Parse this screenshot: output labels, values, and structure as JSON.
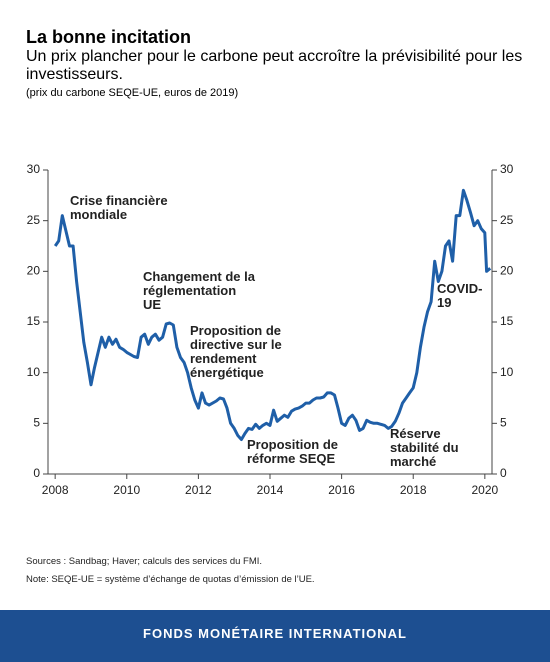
{
  "chart_data": {
    "type": "line",
    "title": "La bonne incitation",
    "subtitle": "Un prix plancher pour le carbone peut accroître la prévisibilité pour les investisseurs.",
    "unit_note": "(prix du carbone SEQE-UE, euros de 2019)",
    "x": [
      2008.0,
      2008.1,
      2008.2,
      2008.3,
      2008.4,
      2008.5,
      2008.6,
      2008.7,
      2008.8,
      2008.9,
      2009.0,
      2009.1,
      2009.2,
      2009.3,
      2009.4,
      2009.5,
      2009.6,
      2009.7,
      2009.8,
      2009.9,
      2010.0,
      2010.2,
      2010.3,
      2010.4,
      2010.5,
      2010.6,
      2010.7,
      2010.8,
      2010.9,
      2011.0,
      2011.1,
      2011.2,
      2011.3,
      2011.4,
      2011.5,
      2011.6,
      2011.7,
      2011.8,
      2011.9,
      2012.0,
      2012.1,
      2012.2,
      2012.3,
      2012.5,
      2012.6,
      2012.7,
      2012.8,
      2012.9,
      2013.0,
      2013.1,
      2013.2,
      2013.3,
      2013.4,
      2013.5,
      2013.6,
      2013.7,
      2013.8,
      2013.9,
      2014.0,
      2014.1,
      2014.2,
      2014.3,
      2014.4,
      2014.5,
      2014.6,
      2014.7,
      2014.8,
      2014.9,
      2015.0,
      2015.1,
      2015.2,
      2015.3,
      2015.4,
      2015.5,
      2015.6,
      2015.7,
      2015.8,
      2015.9,
      2016.0,
      2016.1,
      2016.2,
      2016.3,
      2016.4,
      2016.5,
      2016.6,
      2016.7,
      2016.8,
      2016.9,
      2017.0,
      2017.2,
      2017.3,
      2017.4,
      2017.5,
      2017.6,
      2017.7,
      2017.8,
      2017.9,
      2018.0,
      2018.1,
      2018.2,
      2018.3,
      2018.4,
      2018.5,
      2018.6,
      2018.7,
      2018.8,
      2018.9,
      2019.0,
      2019.1,
      2019.2,
      2019.3,
      2019.4,
      2019.5,
      2019.6,
      2019.7,
      2019.8,
      2019.9,
      2020.0,
      2020.05,
      2020.15
    ],
    "series": [
      {
        "name": "Prix du carbone SEQE-UE",
        "color": "#1f5fa8",
        "values": [
          22.5,
          23,
          25.5,
          24,
          22.5,
          22.5,
          19,
          16,
          13,
          11,
          8.8,
          10.5,
          12,
          13.5,
          12.5,
          13.5,
          12.8,
          13.3,
          12.5,
          12.3,
          12,
          11.6,
          11.5,
          13.5,
          13.8,
          12.8,
          13.5,
          13.8,
          13.2,
          13.5,
          14.8,
          14.9,
          14.7,
          12.5,
          11.5,
          11,
          10,
          8.5,
          7.3,
          6.5,
          8,
          7,
          6.8,
          7.2,
          7.5,
          7.4,
          6.5,
          5,
          4.5,
          3.8,
          3.4,
          4,
          4.5,
          4.4,
          4.9,
          4.5,
          4.8,
          5,
          4.8,
          6.3,
          5.2,
          5.5,
          5.8,
          5.6,
          6.2,
          6.4,
          6.5,
          6.7,
          7,
          7,
          7.3,
          7.5,
          7.5,
          7.6,
          8,
          8,
          7.8,
          6.5,
          5,
          4.8,
          5.5,
          5.8,
          5.3,
          4.3,
          4.5,
          5.3,
          5.1,
          5,
          5,
          4.8,
          4.5,
          4.7,
          5.2,
          6,
          7,
          7.5,
          8,
          8.5,
          10,
          12.5,
          14.5,
          16,
          17,
          21,
          19,
          20,
          22.5,
          23,
          21,
          25.5,
          25.5,
          28,
          27,
          25.8,
          24.5,
          25,
          24.2,
          23.8,
          20,
          20.3
        ]
      }
    ],
    "xlim": [
      2007.8,
      2020.2
    ],
    "xticks": [
      2008,
      2010,
      2012,
      2014,
      2016,
      2018,
      2020
    ],
    "ylim": [
      0,
      30
    ],
    "yticks": [
      0,
      5,
      10,
      15,
      20,
      25,
      30
    ],
    "y2lim": [
      0,
      30
    ],
    "y2ticks": [
      0,
      5,
      10,
      15,
      20,
      25,
      30
    ],
    "annotations": [
      [
        "Crise financière",
        "mondiale"
      ],
      [
        "Changement de la",
        "réglementation",
        "UE"
      ],
      [
        "Proposition de",
        "directive sur le",
        "rendement",
        "énergétique"
      ],
      [
        "Proposition de",
        "réforme SEQE"
      ],
      [
        "Réserve",
        "stabilité du",
        "marché"
      ],
      [
        "COVID-",
        "19"
      ]
    ],
    "sources": "Sources : Sandbag; Haver; calculs des services du FMI.",
    "note": "Note: SEQE-UE = système d’échange de quotas d’émission de l’UE.",
    "footer": "FONDS MONÉTAIRE INTERNATIONAL"
  }
}
